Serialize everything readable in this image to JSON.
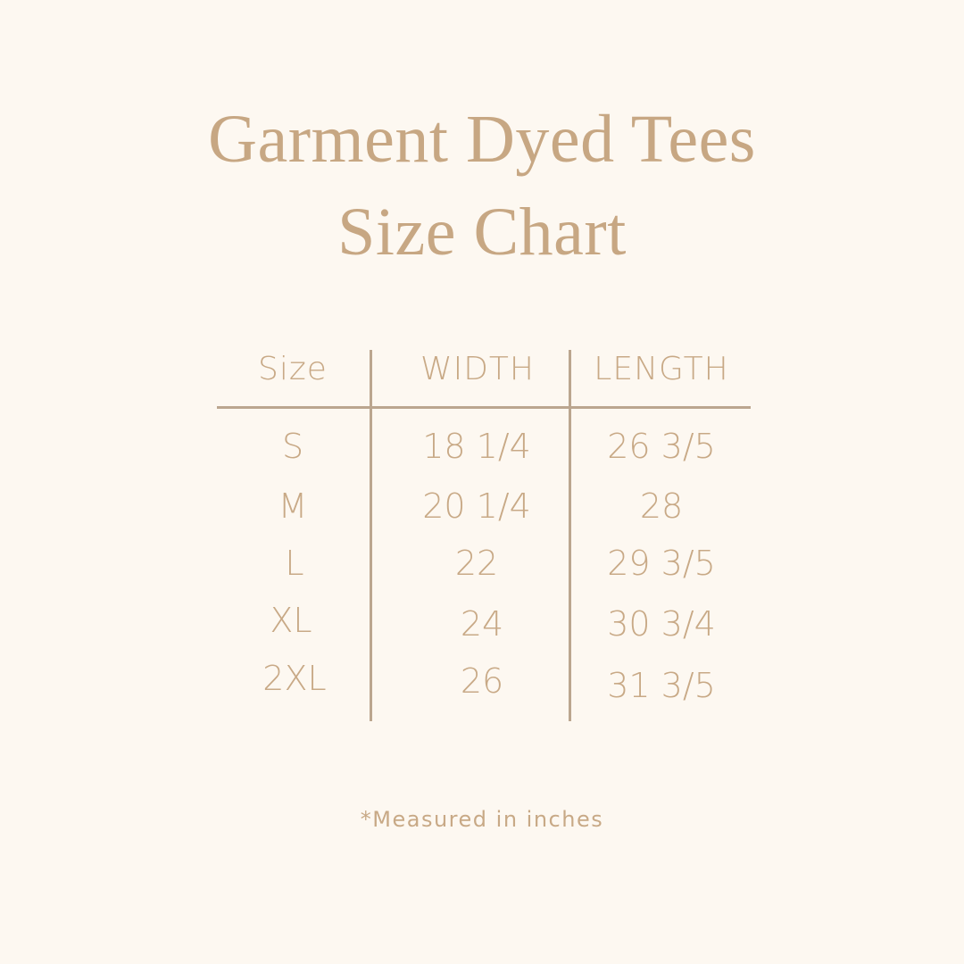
{
  "title": {
    "line1": "Garment Dyed Tees",
    "line2": "Size Chart"
  },
  "table": {
    "headers": [
      "Size",
      "WIDTH",
      "LENGTH"
    ],
    "rows": [
      [
        "S",
        "18 1/4",
        "26 3/5"
      ],
      [
        "M",
        "20 1/4",
        "28"
      ],
      [
        "L",
        "22",
        "29 3/5"
      ],
      [
        "XL",
        "24",
        "30 3/4"
      ],
      [
        "2XL",
        "26",
        "31 3/5"
      ]
    ]
  },
  "footnote": "*Measured in inches",
  "colors": {
    "background": "#fdf8f1",
    "text": "#c8a986",
    "lines": "#bba68f"
  }
}
